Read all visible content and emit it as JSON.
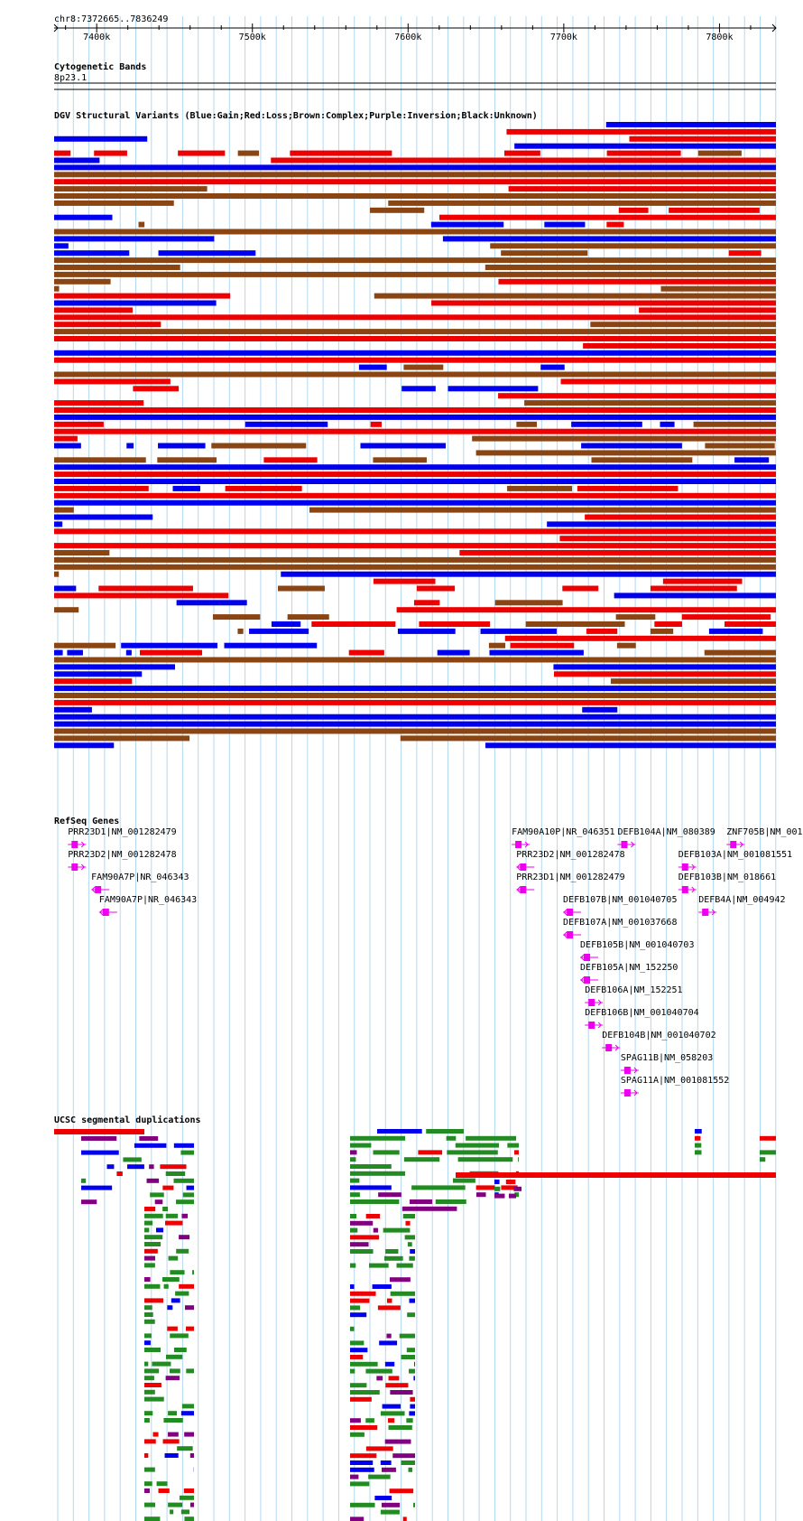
{
  "ruler": {
    "position": "chr8:7372665..7836249",
    "ticks": [
      {
        "label": "7400k",
        "kb": 7400
      },
      {
        "label": "7500k",
        "kb": 7500
      },
      {
        "label": "7600k",
        "kb": 7600
      },
      {
        "label": "7700k",
        "kb": 7700
      },
      {
        "label": "7800k",
        "kb": 7800
      }
    ]
  },
  "cyto": {
    "title": "Cytogenetic Bands",
    "band": "8p23.1"
  },
  "dgv": {
    "title": "DGV Structural Variants (Blue:Gain;Red:Loss;Brown:Complex;Purple:Inversion;Black:Unknown)",
    "colors": {
      "blue": "#0000ee",
      "red": "#ee0000",
      "brown": "#8b4513",
      "purple": "#800080",
      "black": "#000000"
    }
  },
  "refseq": {
    "title": "RefSeq Genes",
    "color": "#ee00ee",
    "genes": [
      {
        "label": "PRR23D1|NM_001282479",
        "kb": 7385,
        "row": 0,
        "strand": "+"
      },
      {
        "label": "PRR23D2|NM_001282478",
        "kb": 7385,
        "row": 1,
        "strand": "+"
      },
      {
        "label": "FAM90A7P|NR_046343",
        "kb": 7400,
        "row": 2,
        "strand": "-"
      },
      {
        "label": "FAM90A7P|NR_046343",
        "kb": 7405,
        "row": 3,
        "strand": "-"
      },
      {
        "label": "FAM90A10P|NR_046351",
        "kb": 7670,
        "row": 0,
        "strand": "+"
      },
      {
        "label": "DEFB104A|NM_080389",
        "kb": 7738,
        "row": 0,
        "strand": "+"
      },
      {
        "label": "ZNF705B|NM_001",
        "kb": 7808,
        "row": 0,
        "strand": "+"
      },
      {
        "label": "PRR23D2|NM_001282478",
        "kb": 7673,
        "row": 1,
        "strand": "-"
      },
      {
        "label": "PRR23D1|NM_001282479",
        "kb": 7673,
        "row": 2,
        "strand": "-"
      },
      {
        "label": "DEFB103A|NM_001081551",
        "kb": 7777,
        "row": 1,
        "strand": "+"
      },
      {
        "label": "DEFB103B|NM_018661",
        "kb": 7777,
        "row": 2,
        "strand": "+"
      },
      {
        "label": "DEFB107B|NM_001040705",
        "kb": 7703,
        "row": 3,
        "strand": "-"
      },
      {
        "label": "DEFB4A|NM_004942",
        "kb": 7790,
        "row": 3,
        "strand": "+"
      },
      {
        "label": "DEFB107A|NM_001037668",
        "kb": 7703,
        "row": 4,
        "strand": "-"
      },
      {
        "label": "DEFB105B|NM_001040703",
        "kb": 7714,
        "row": 5,
        "strand": "-"
      },
      {
        "label": "DEFB105A|NM_152250",
        "kb": 7714,
        "row": 6,
        "strand": "-"
      },
      {
        "label": "DEFB106A|NM_152251",
        "kb": 7717,
        "row": 7,
        "strand": "+"
      },
      {
        "label": "DEFB106B|NM_001040704",
        "kb": 7717,
        "row": 8,
        "strand": "+"
      },
      {
        "label": "DEFB104B|NM_001040702",
        "kb": 7728,
        "row": 9,
        "strand": "+"
      },
      {
        "label": "SPAG11B|NM_058203",
        "kb": 7740,
        "row": 10,
        "strand": "+"
      },
      {
        "label": "SPAG11A|NM_001081552",
        "kb": 7740,
        "row": 11,
        "strand": "+"
      }
    ]
  },
  "segdup": {
    "title": "UCSC segmental duplications",
    "colors": {
      "red": "#ee0000",
      "green": "#228b22",
      "blue": "#0000ee",
      "purple": "#800080"
    }
  }
}
